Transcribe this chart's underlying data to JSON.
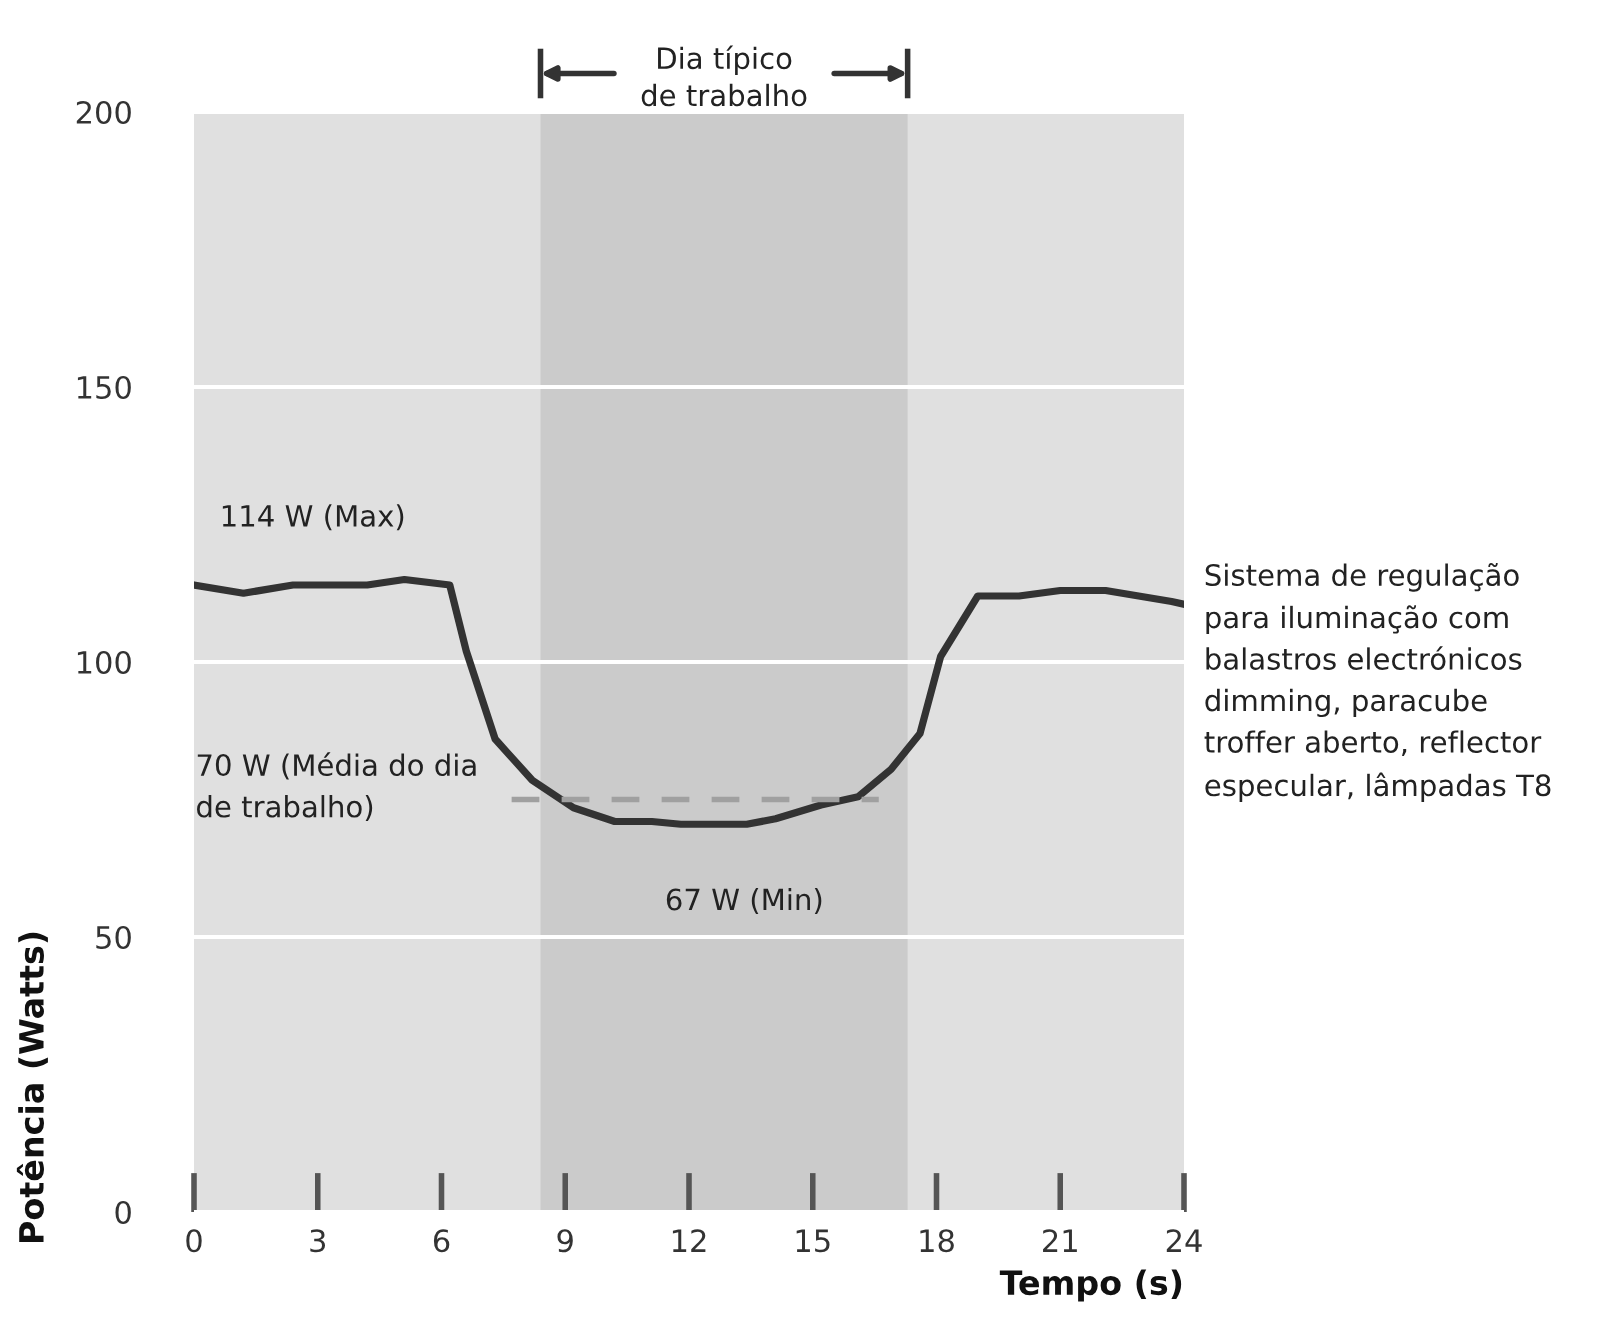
{
  "chart_data": {
    "type": "line",
    "xlabel": "Tempo (s)",
    "ylabel": "Potência (Watts)",
    "xlim": [
      0,
      24
    ],
    "xticks": [
      0,
      3,
      6,
      9,
      12,
      15,
      18,
      21,
      24
    ],
    "ylim": [
      0,
      200
    ],
    "yticks": [
      0,
      50,
      100,
      150,
      200
    ],
    "grid": "y",
    "legend": false,
    "marker": "none",
    "series": [
      {
        "color": "#333333",
        "line_style": "solid",
        "x": [
          0,
          1.2,
          2.4,
          4.2,
          5.1,
          6.2,
          6.6,
          7.3,
          8.2,
          9.2,
          10.2,
          11.1,
          11.8,
          13.4,
          14.1,
          15.2,
          16.1,
          16.9,
          17.6,
          18.1,
          19,
          20,
          21,
          22.1,
          23.7,
          24
        ],
        "values": [
          114,
          112.5,
          114,
          114,
          115,
          114,
          102,
          86,
          78.5,
          73.5,
          71,
          71,
          70.5,
          70.5,
          71.5,
          74,
          75.5,
          80.5,
          87,
          101,
          112,
          112,
          113,
          113,
          111,
          110.5
        ]
      },
      {
        "color": "#a0a0a0",
        "line_style": "dashed",
        "x": [
          7.7,
          16.6
        ],
        "values": [
          75,
          75
        ]
      }
    ],
    "bands": [
      {
        "axis": "x",
        "from": 8.4,
        "to": 17.3,
        "label": "Dia típico\nde trabalho",
        "color": "#cbcbcb"
      }
    ],
    "annotations": [
      {
        "text": "114 W (Max)",
        "x": 5.1,
        "y": 115
      },
      {
        "text": "70 W (Média do dia\nde trabalho)",
        "x": 7.7,
        "y": 75
      },
      {
        "text": "67 W (Min)",
        "x": 12.6,
        "y": 70.5
      },
      "Sistema de regulação\npara iluminação com\nbalastros electrónicos\ndimming, paracube\ntroffer aberto, reflector\nespecular, lâmpadas T8"
    ]
  }
}
